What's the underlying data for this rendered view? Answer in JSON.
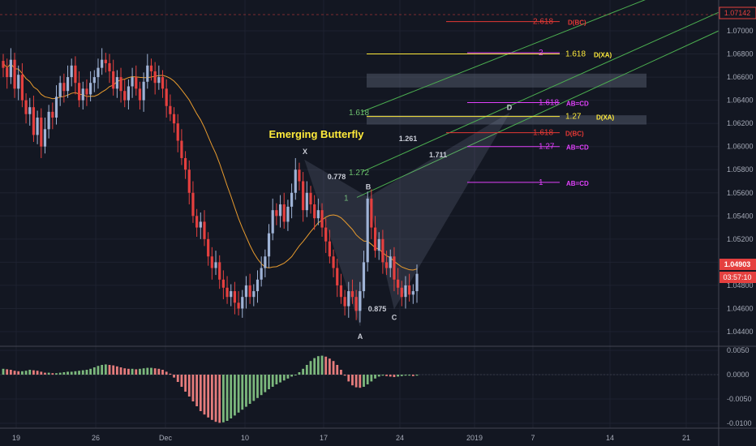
{
  "chart_data": {
    "type": "candlestick",
    "title": "Emerging Butterfly",
    "instrument_price": "1.04903",
    "countdown": "03:57:10",
    "top_price_marker": "1.07142",
    "price_axis": {
      "ylim": [
        1.043,
        1.072
      ],
      "ticks": [
        "1.07000",
        "1.06800",
        "1.06600",
        "1.06400",
        "1.06200",
        "1.06000",
        "1.05800",
        "1.05600",
        "1.05400",
        "1.05200",
        "1.05000",
        "1.04800",
        "1.04600",
        "1.04400"
      ]
    },
    "time_axis": {
      "ticks": [
        "19",
        "26",
        "Dec",
        "10",
        "17",
        "24",
        "2019",
        "7",
        "14",
        "21"
      ]
    },
    "oscillator": {
      "ylim": [
        -0.0105,
        0.0055
      ],
      "ticks": [
        "0.0050",
        "0.0000",
        "-0.0050",
        "-0.0100"
      ],
      "values": [
        0.0012,
        0.0011,
        0.001,
        0.0008,
        0.0007,
        0.0007,
        0.0008,
        0.001,
        0.0009,
        0.0008,
        0.0006,
        0.0004,
        0.0004,
        0.0003,
        0.0003,
        0.0004,
        0.0005,
        0.0006,
        0.0006,
        0.0007,
        0.0008,
        0.0009,
        0.001,
        0.0012,
        0.0015,
        0.0018,
        0.002,
        0.0021,
        0.002,
        0.0019,
        0.0017,
        0.0015,
        0.0013,
        0.0012,
        0.0012,
        0.0011,
        0.0012,
        0.0013,
        0.0014,
        0.0014,
        0.0013,
        0.0012,
        0.001,
        0.0006,
        0.0002,
        -0.0006,
        -0.0015,
        -0.0025,
        -0.0035,
        -0.0045,
        -0.0055,
        -0.0065,
        -0.0075,
        -0.0082,
        -0.0088,
        -0.0093,
        -0.0097,
        -0.0099,
        -0.0098,
        -0.0095,
        -0.009,
        -0.0084,
        -0.0078,
        -0.0072,
        -0.0066,
        -0.006,
        -0.0054,
        -0.0048,
        -0.0042,
        -0.0036,
        -0.003,
        -0.0025,
        -0.002,
        -0.0016,
        -0.0012,
        -0.0008,
        -0.0004,
        0.0,
        0.0005,
        0.0012,
        0.002,
        0.0028,
        0.0034,
        0.0038,
        0.0039,
        0.0037,
        0.0033,
        0.0028,
        0.002,
        0.001,
        -0.0002,
        -0.0014,
        -0.0022,
        -0.0026,
        -0.0027,
        -0.0025,
        -0.002,
        -0.0014,
        -0.0008,
        -0.0004,
        -0.0002,
        -0.0003,
        -0.0004,
        -0.0005,
        -0.0004,
        -0.0003,
        -0.0002,
        -0.0002,
        -0.0003,
        -0.0002
      ]
    },
    "pattern_points": [
      {
        "name": "X",
        "price": 1.0588
      },
      {
        "name": "A",
        "price": 1.0445
      },
      {
        "name": "B",
        "price": 1.0556
      },
      {
        "name": "C",
        "price": 1.046
      },
      {
        "name": "D",
        "price": 1.0629
      }
    ],
    "pattern_ratios": [
      "0.778",
      "0.875",
      "1.261",
      "1.711"
    ],
    "fib_levels": [
      {
        "ratio": "2.618",
        "tag": "D(BC)",
        "price": 1.0708,
        "color": "#e53935"
      },
      {
        "ratio": "2",
        "tag": "",
        "price": 1.0681,
        "color": "#e040fb"
      },
      {
        "ratio": "1.618",
        "tag": "D(XA)",
        "price": 1.068,
        "color": "#ffeb3b"
      },
      {
        "ratio": "1.618",
        "tag": "AB=CD",
        "price": 1.0638,
        "color": "#e040fb"
      },
      {
        "ratio": "1.27",
        "tag": "D(XA)",
        "price": 1.0626,
        "color": "#ffeb3b"
      },
      {
        "ratio": "1.618",
        "tag": "D(BC)",
        "price": 1.0612,
        "color": "#e53935"
      },
      {
        "ratio": "1.27",
        "tag": "AB=CD",
        "price": 1.06,
        "color": "#e040fb"
      },
      {
        "ratio": "1",
        "tag": "AB=CD",
        "price": 1.0569,
        "color": "#e040fb"
      }
    ],
    "channel_labels": [
      "1",
      "1.272",
      "1.618"
    ],
    "zones": [
      {
        "from": 1.0651,
        "to": 1.0663
      },
      {
        "from": 1.0619,
        "to": 1.0627
      }
    ],
    "colors": {
      "bull": "#9fb3d6",
      "bear": "#e5403f",
      "ma": "#e89b2e",
      "channel": "#4caf50",
      "background": "#131722"
    },
    "closes": [
      1.0668,
      1.066,
      1.0675,
      1.065,
      1.0662,
      1.064,
      1.0628,
      1.0634,
      1.061,
      1.0625,
      1.06,
      1.0615,
      1.063,
      1.0625,
      1.0643,
      1.0655,
      1.0648,
      1.066,
      1.067,
      1.0655,
      1.064,
      1.065,
      1.0645,
      1.0655,
      1.066,
      1.0668,
      1.0675,
      1.0672,
      1.0665,
      1.065,
      1.066,
      1.0648,
      1.064,
      1.0652,
      1.066,
      1.065,
      1.064,
      1.0656,
      1.067,
      1.0665,
      1.0655,
      1.066,
      1.065,
      1.0635,
      1.0628,
      1.062,
      1.0605,
      1.059,
      1.058,
      1.056,
      1.054,
      1.053,
      1.0535,
      1.052,
      1.0505,
      1.0495,
      1.05,
      1.0485,
      1.0478,
      1.047,
      1.0475,
      1.0465,
      1.046,
      1.047,
      1.048,
      1.047,
      1.0475,
      1.0485,
      1.0495,
      1.0505,
      1.0525,
      1.0545,
      1.054,
      1.055,
      1.0535,
      1.0548,
      1.056,
      1.058,
      1.057,
      1.0545,
      1.056,
      1.055,
      1.0538,
      1.0545,
      1.053,
      1.0518,
      1.0505,
      1.0495,
      1.048,
      1.047,
      1.0462,
      1.0475,
      1.047,
      1.0458,
      1.0475,
      1.05,
      1.0555,
      1.053,
      1.051,
      1.052,
      1.05,
      1.0495,
      1.0505,
      1.0485,
      1.0478,
      1.047,
      1.048,
      1.0472,
      1.0475,
      1.049
    ]
  }
}
